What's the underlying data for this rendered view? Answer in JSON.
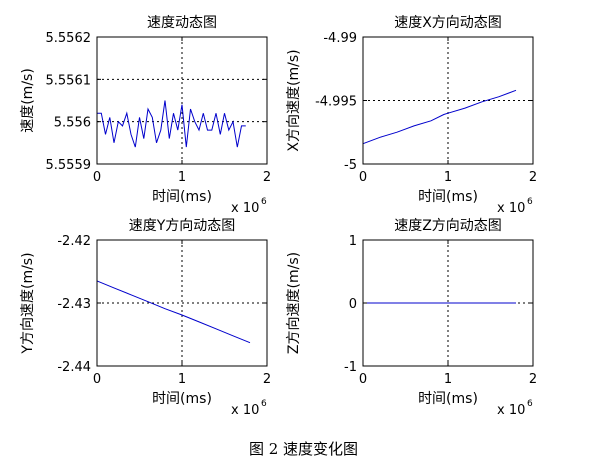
{
  "figure_caption": "图 2  速度变化图",
  "chart_data": [
    {
      "type": "line",
      "title": "速度动态图",
      "xlabel": "时间(ms)",
      "ylabel": "速度(m/s)",
      "x_multiplier_label": "x 10",
      "x_multiplier_exp": "6",
      "xlim": [
        0,
        2
      ],
      "ylim": [
        5.5559,
        5.5562
      ],
      "x_ticks": [
        0,
        1,
        2
      ],
      "x_tick_labels": [
        "0",
        "1",
        "2"
      ],
      "y_ticks": [
        5.5559,
        5.556,
        5.5561,
        5.5562
      ],
      "y_tick_labels": [
        "5.5559",
        "5.556",
        "5.5561",
        "5.5562"
      ],
      "grid": true,
      "line_color": "#0000cc",
      "x": [
        0.0,
        0.05,
        0.1,
        0.15,
        0.2,
        0.25,
        0.3,
        0.35,
        0.4,
        0.45,
        0.5,
        0.55,
        0.6,
        0.65,
        0.7,
        0.75,
        0.8,
        0.85,
        0.9,
        0.95,
        1.0,
        1.05,
        1.1,
        1.15,
        1.2,
        1.25,
        1.3,
        1.35,
        1.4,
        1.45,
        1.5,
        1.55,
        1.6,
        1.65,
        1.7,
        1.75
      ],
      "y": [
        5.55602,
        5.55602,
        5.55597,
        5.55601,
        5.55595,
        5.556,
        5.55599,
        5.55602,
        5.55597,
        5.55594,
        5.55601,
        5.55596,
        5.55603,
        5.55601,
        5.55595,
        5.55598,
        5.55605,
        5.55596,
        5.55602,
        5.55598,
        5.55604,
        5.55594,
        5.55603,
        5.556,
        5.55598,
        5.55602,
        5.55598,
        5.55598,
        5.55602,
        5.55597,
        5.55602,
        5.55598,
        5.556,
        5.55594,
        5.55599,
        5.55599
      ]
    },
    {
      "type": "line",
      "title": "速度X方向动态图",
      "xlabel": "时间(ms)",
      "ylabel": "X方向速度(m/s)",
      "x_multiplier_label": "x 10",
      "x_multiplier_exp": "6",
      "xlim": [
        0,
        2
      ],
      "ylim": [
        -5.0,
        -4.99
      ],
      "x_ticks": [
        0,
        1,
        2
      ],
      "x_tick_labels": [
        "0",
        "1",
        "2"
      ],
      "y_ticks": [
        -5.0,
        -4.995,
        -4.99
      ],
      "y_tick_labels": [
        "-5",
        "-4.995",
        "-4.99"
      ],
      "grid": true,
      "line_color": "#0000cc",
      "x": [
        0.0,
        0.2,
        0.4,
        0.6,
        0.8,
        0.95,
        1.0,
        1.2,
        1.4,
        1.6,
        1.8
      ],
      "y": [
        -4.9984,
        -4.9979,
        -4.9975,
        -4.997,
        -4.9966,
        -4.9961,
        -4.996,
        -4.9956,
        -4.9951,
        -4.9947,
        -4.9942
      ]
    },
    {
      "type": "line",
      "title": "速度Y方向动态图",
      "xlabel": "时间(ms)",
      "ylabel": "Y方向速度(m/s)",
      "x_multiplier_label": "x 10",
      "x_multiplier_exp": "6",
      "xlim": [
        0,
        2
      ],
      "ylim": [
        -2.44,
        -2.42
      ],
      "x_ticks": [
        0,
        1,
        2
      ],
      "x_tick_labels": [
        "0",
        "1",
        "2"
      ],
      "y_ticks": [
        -2.44,
        -2.43,
        -2.42
      ],
      "y_tick_labels": [
        "-2.44",
        "-2.43",
        "-2.42"
      ],
      "grid": true,
      "line_color": "#0000cc",
      "x": [
        0.0,
        0.2,
        0.4,
        0.6,
        0.8,
        1.0,
        1.2,
        1.4,
        1.6,
        1.8
      ],
      "y": [
        -2.4265,
        -2.4276,
        -2.4287,
        -2.4298,
        -2.4309,
        -2.4319,
        -2.433,
        -2.4341,
        -2.4352,
        -2.4363
      ]
    },
    {
      "type": "line",
      "title": "速度Z方向动态图",
      "xlabel": "时间(ms)",
      "ylabel": "Z方向速度(m/s)",
      "x_multiplier_label": "x 10",
      "x_multiplier_exp": "6",
      "xlim": [
        0,
        2
      ],
      "ylim": [
        -1,
        1
      ],
      "x_ticks": [
        0,
        1,
        2
      ],
      "x_tick_labels": [
        "0",
        "1",
        "2"
      ],
      "y_ticks": [
        -1,
        0,
        1
      ],
      "y_tick_labels": [
        "-1",
        "0",
        "1"
      ],
      "grid": true,
      "line_color": "#0000cc",
      "x": [
        0.0,
        1.8
      ],
      "y": [
        0,
        0
      ]
    }
  ]
}
